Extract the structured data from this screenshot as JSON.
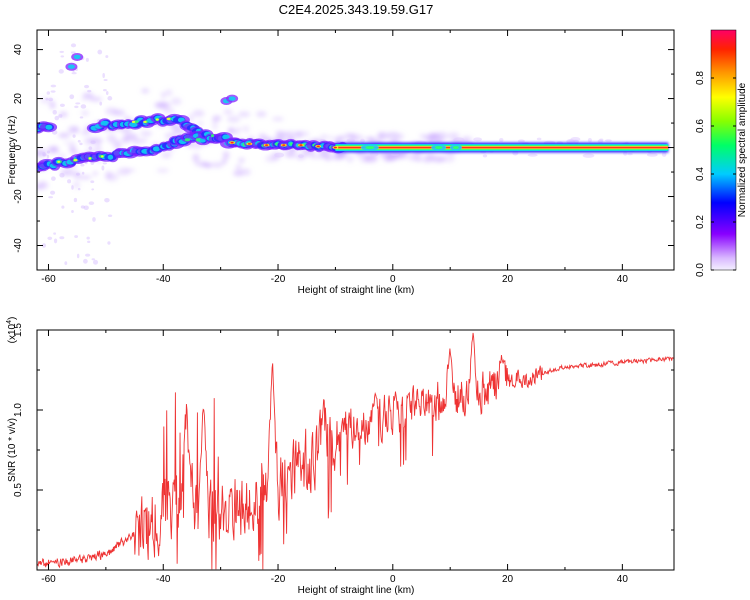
{
  "title": "C2E4.2025.343.19.59.G17",
  "chart_data": [
    {
      "type": "heatmap",
      "name": "spectrogram",
      "xlabel": "Height of straight line (km)",
      "ylabel": "Frequency (Hz)",
      "xlim": [
        -62,
        49
      ],
      "ylim": [
        -50,
        48
      ],
      "xticks": [
        -60,
        -40,
        -20,
        0,
        20,
        40
      ],
      "xtick_labels": [
        "-60",
        "-40",
        "-20",
        "0",
        "20",
        "40"
      ],
      "yticks": [
        -40,
        -20,
        0,
        20,
        40
      ],
      "ytick_labels": [
        "-40",
        "-20",
        "0",
        "20",
        "40"
      ],
      "colorbar": {
        "label": "Normalized spectral amplitude",
        "range": [
          0,
          1
        ],
        "ticks": [
          0.0,
          0.2,
          0.4,
          0.6,
          0.8
        ],
        "tick_labels": [
          "0.0",
          "0.2",
          "0.4",
          "0.6",
          "0.8"
        ]
      },
      "tracks": [
        {
          "name": "main-trace",
          "points": [
            [
              -62,
              -8
            ],
            [
              -55,
              -5
            ],
            [
              -48,
              -3
            ],
            [
              -42,
              -1
            ],
            [
              -37,
              2
            ],
            [
              -32,
              5
            ],
            [
              -28,
              2
            ],
            [
              -22,
              1
            ],
            [
              -16,
              1
            ],
            [
              -10,
              0
            ],
            [
              0,
              0
            ],
            [
              10,
              0
            ],
            [
              20,
              0
            ],
            [
              30,
              0
            ],
            [
              40,
              0
            ],
            [
              48,
              0
            ]
          ]
        },
        {
          "name": "upper-trace",
          "points": [
            [
              -62,
              8
            ],
            [
              -58,
              9
            ],
            [
              -52,
              9
            ],
            [
              -46,
              10
            ],
            [
              -42,
              11
            ],
            [
              -38,
              12
            ],
            [
              -35,
              8
            ],
            [
              -33,
              5
            ]
          ]
        },
        {
          "name": "spike-20hz",
          "points": [
            [
              -29,
              19
            ],
            [
              -28,
              20
            ]
          ]
        },
        {
          "name": "spike-35hz",
          "points": [
            [
              -56,
              33
            ],
            [
              -55,
              37
            ]
          ]
        }
      ]
    },
    {
      "type": "line",
      "name": "snr",
      "xlabel": "Height of straight line (km)",
      "ylabel": "SNR (10 * v/v)",
      "multiplier_label": "(x10",
      "multiplier_exp": "4",
      "multiplier_close": ")",
      "xlim": [
        -62,
        49
      ],
      "ylim": [
        0,
        1.5
      ],
      "xticks": [
        -60,
        -40,
        -20,
        0,
        20,
        40
      ],
      "xtick_labels": [
        "-60",
        "-40",
        "-20",
        "0",
        "20",
        "40"
      ],
      "yticks": [
        0.5,
        1.0,
        1.5
      ],
      "ytick_labels": [
        "0.5",
        "1.0",
        "1.5"
      ],
      "color": "#ee3333",
      "envelope": [
        [
          -62,
          0.04
        ],
        [
          -55,
          0.06
        ],
        [
          -50,
          0.1
        ],
        [
          -45,
          0.22
        ],
        [
          -40,
          0.35
        ],
        [
          -37,
          0.5
        ],
        [
          -34,
          0.4
        ],
        [
          -30,
          0.32
        ],
        [
          -26,
          0.42
        ],
        [
          -22,
          0.48
        ],
        [
          -18,
          0.58
        ],
        [
          -14,
          0.7
        ],
        [
          -10,
          0.84
        ],
        [
          -6,
          0.93
        ],
        [
          -2,
          0.96
        ],
        [
          2,
          1.0
        ],
        [
          6,
          1.04
        ],
        [
          10,
          1.07
        ],
        [
          14,
          1.09
        ],
        [
          18,
          1.14
        ],
        [
          22,
          1.2
        ],
        [
          26,
          1.23
        ],
        [
          30,
          1.27
        ],
        [
          35,
          1.28
        ],
        [
          40,
          1.3
        ],
        [
          45,
          1.31
        ],
        [
          49,
          1.32
        ]
      ],
      "spikes": [
        [
          -36,
          1.05
        ],
        [
          -33,
          1.08
        ],
        [
          -21,
          1.35
        ],
        [
          -12,
          1.07
        ],
        [
          -3,
          1.12
        ],
        [
          10,
          1.4
        ],
        [
          14,
          1.5
        ],
        [
          19,
          1.35
        ]
      ]
    }
  ]
}
